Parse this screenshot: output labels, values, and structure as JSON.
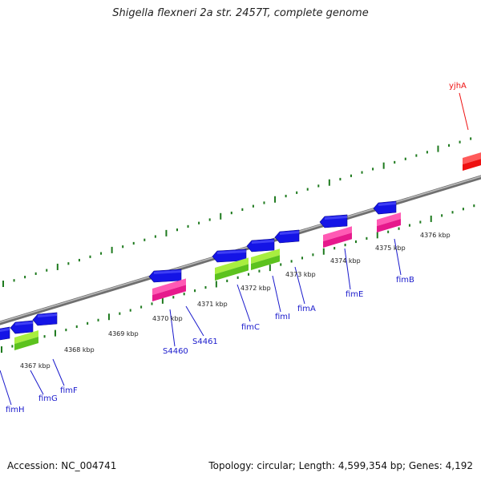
{
  "title": "Shigella flexneri 2a str. 2457T, complete genome",
  "footer": {
    "accession": "Accession: NC_004741",
    "summary": "Topology: circular; Length: 4,599,354 bp; Genes: 4,192"
  },
  "scale_labels": [
    "4367 kbp",
    "4368 kbp",
    "4369 kbp",
    "4370 kbp",
    "4371 kbp",
    "4372 kbp",
    "4373 kbp",
    "4374 kbp",
    "4375 kbp",
    "4376 kbp"
  ],
  "gene_labels": [
    "fimH",
    "fimG",
    "fimF",
    "S4460",
    "S4461",
    "fimC",
    "fimI",
    "fimA",
    "fimE",
    "fimB",
    "yjhA"
  ],
  "colors": {
    "backbone": "#8a8a8a",
    "tick": "#1e7a1e",
    "gene_blue": "#1414e6",
    "gene_pink": "#e6198c",
    "gene_green": "#5cc21e",
    "gene_red": "#ee1111",
    "label_blue": "#1a1acc",
    "label_red": "#ee1111"
  }
}
